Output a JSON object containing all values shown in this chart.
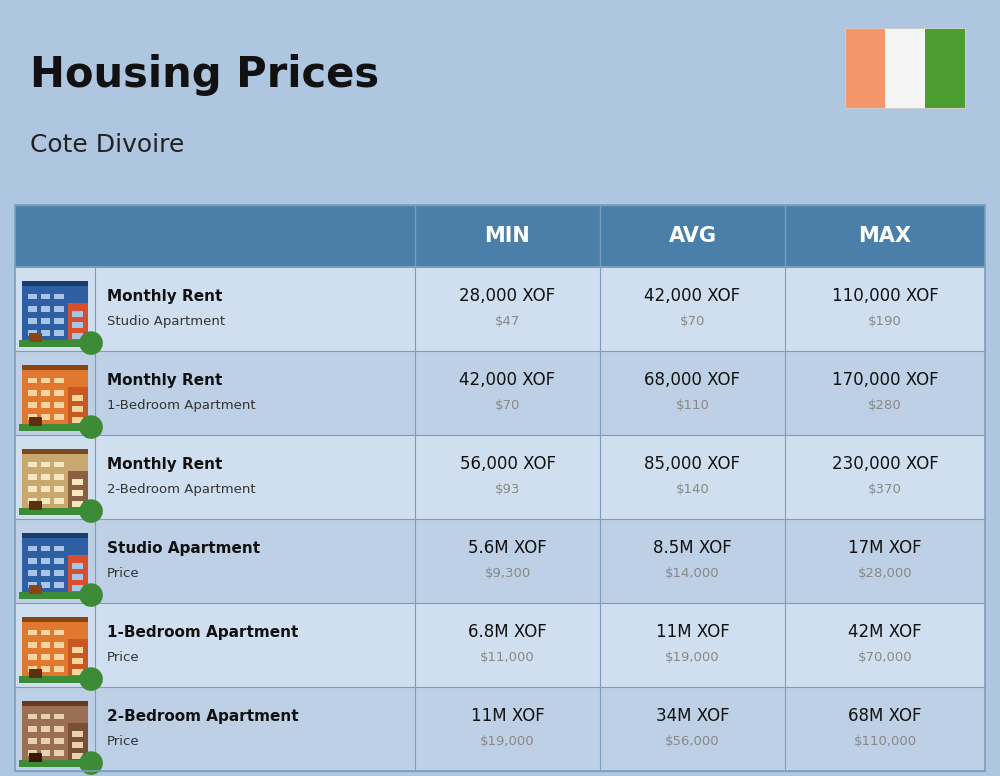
{
  "title": "Housing Prices",
  "subtitle": "Cote Divoire",
  "background_color": "#aec6e0",
  "header_bg_color": "#4a7faa",
  "header_text_color": "#ffffff",
  "row_bg_colors": [
    "#d0dff0",
    "#bdd0e5"
  ],
  "col_header_labels": [
    "MIN",
    "AVG",
    "MAX"
  ],
  "rows": [
    {
      "icon_type": "blue_red",
      "label_bold": "Monthly Rent",
      "label_sub": "Studio Apartment",
      "min_xof": "28,000 XOF",
      "min_usd": "$47",
      "avg_xof": "42,000 XOF",
      "avg_usd": "$70",
      "max_xof": "110,000 XOF",
      "max_usd": "$190"
    },
    {
      "icon_type": "orange_green",
      "label_bold": "Monthly Rent",
      "label_sub": "1-Bedroom Apartment",
      "min_xof": "42,000 XOF",
      "min_usd": "$70",
      "avg_xof": "68,000 XOF",
      "avg_usd": "$110",
      "max_xof": "170,000 XOF",
      "max_usd": "$280"
    },
    {
      "icon_type": "tan_orange",
      "label_bold": "Monthly Rent",
      "label_sub": "2-Bedroom Apartment",
      "min_xof": "56,000 XOF",
      "min_usd": "$93",
      "avg_xof": "85,000 XOF",
      "avg_usd": "$140",
      "max_xof": "230,000 XOF",
      "max_usd": "$370"
    },
    {
      "icon_type": "blue_red",
      "label_bold": "Studio Apartment",
      "label_sub": "Price",
      "min_xof": "5.6M XOF",
      "min_usd": "$9,300",
      "avg_xof": "8.5M XOF",
      "avg_usd": "$14,000",
      "max_xof": "17M XOF",
      "max_usd": "$28,000"
    },
    {
      "icon_type": "orange_green",
      "label_bold": "1-Bedroom Apartment",
      "label_sub": "Price",
      "min_xof": "6.8M XOF",
      "min_usd": "$11,000",
      "avg_xof": "11M XOF",
      "avg_usd": "$19,000",
      "max_xof": "42M XOF",
      "max_usd": "$70,000"
    },
    {
      "icon_type": "brown_tan",
      "label_bold": "2-Bedroom Apartment",
      "label_sub": "Price",
      "min_xof": "11M XOF",
      "min_usd": "$19,000",
      "avg_xof": "34M XOF",
      "avg_usd": "$56,000",
      "max_xof": "68M XOF",
      "max_usd": "$110,000"
    }
  ],
  "flag_colors": [
    "#f4956a",
    "#f5f5f5",
    "#4a9e2f"
  ],
  "divider_color": "#7a9fbe",
  "text_dark": "#111111",
  "text_usd": "#888888"
}
